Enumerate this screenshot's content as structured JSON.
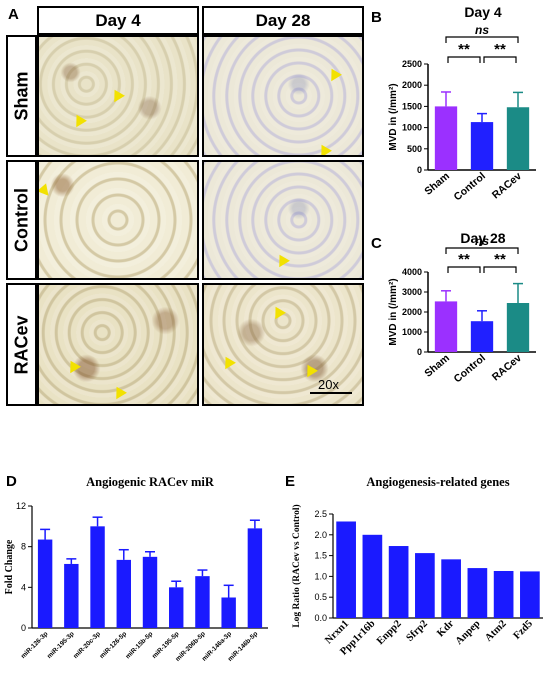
{
  "panel_a": {
    "label": "A",
    "col_headers": [
      "Day 4",
      "Day 28"
    ],
    "row_labels": [
      "Sham",
      "Control",
      "RACev"
    ],
    "scale_bar": "20x",
    "arrow_color": "#f2e100"
  },
  "chart_data": [
    {
      "id": "B",
      "type": "bar",
      "panel_label": "B",
      "title": "Day 4",
      "categories": [
        "Sham",
        "Control",
        "RACev"
      ],
      "values": [
        1500,
        1130,
        1480
      ],
      "errors": [
        340,
        200,
        350
      ],
      "colors": [
        "#9b30ff",
        "#2020ff",
        "#1b8b86"
      ],
      "ylabel": "MVD in (/mm²)",
      "ylim": [
        0,
        2500
      ],
      "yticks": [
        "0",
        "500",
        "1000",
        "1500",
        "2000",
        "2500"
      ],
      "annotations": [
        {
          "from": "Sham",
          "to": "Control",
          "text": "**"
        },
        {
          "from": "Control",
          "to": "RACev",
          "text": "**"
        },
        {
          "from": "Sham",
          "to": "RACev",
          "text": "ns"
        }
      ]
    },
    {
      "id": "C",
      "type": "bar",
      "panel_label": "C",
      "title": "Day 28",
      "categories": [
        "Sham",
        "Control",
        "RACev"
      ],
      "values": [
        2530,
        1540,
        2450
      ],
      "errors": [
        530,
        520,
        970
      ],
      "colors": [
        "#9b30ff",
        "#2020ff",
        "#1b8b86"
      ],
      "ylabel": "MVD in (/mm²)",
      "ylim": [
        0,
        4000
      ],
      "yticks": [
        "0",
        "1000",
        "2000",
        "3000",
        "4000"
      ],
      "annotations": [
        {
          "from": "Sham",
          "to": "Control",
          "text": "**"
        },
        {
          "from": "Control",
          "to": "RACev",
          "text": "**"
        },
        {
          "from": "Sham",
          "to": "RACev",
          "text": "ns"
        }
      ]
    },
    {
      "id": "D",
      "type": "bar",
      "panel_label": "D",
      "title": "Angiogenic RACev miR",
      "categories": [
        "miR-126-3p",
        "miR-195-3p",
        "miR-20c-3p",
        "miR-126-5p",
        "miR-15b-5p",
        "miR-195-5p",
        "miR-206b-5p",
        "miR-146a-3p",
        "miR-146b-5p"
      ],
      "values": [
        8.7,
        6.3,
        10.0,
        6.7,
        7.0,
        4.0,
        5.1,
        3.0,
        9.8
      ],
      "errors": [
        1.0,
        0.5,
        0.9,
        1.0,
        0.5,
        0.6,
        0.6,
        1.2,
        0.8
      ],
      "color": "#1a1aff",
      "ylabel": "Fold Change",
      "ylim": [
        0,
        12
      ],
      "yticks": [
        "0",
        "4",
        "8",
        "12"
      ]
    },
    {
      "id": "E",
      "type": "bar",
      "panel_label": "E",
      "title": "Angiogenesis-related genes",
      "categories": [
        "Nrxn1",
        "Ppp1r16b",
        "Enpp2",
        "Sfrp2",
        "Kdr",
        "Anpep",
        "Atm2",
        "Fzd5"
      ],
      "values": [
        2.32,
        2.0,
        1.73,
        1.56,
        1.41,
        1.2,
        1.13,
        1.12
      ],
      "color": "#1a1aff",
      "ylabel": "Log Ratio (RACev vs Control)",
      "ylim": [
        0,
        2.5
      ],
      "yticks": [
        "0.0",
        "0.5",
        "1.0",
        "1.5",
        "2.0",
        "2.5"
      ]
    }
  ]
}
